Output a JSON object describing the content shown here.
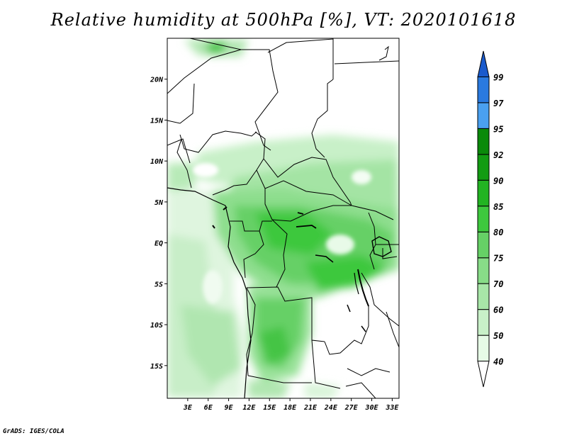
{
  "title": "Relative humidity at 500hPa [%], VT: 2020101618",
  "credit": "GrADS: IGES/COLA",
  "map": {
    "lon_range": [
      0,
      34
    ],
    "lat_range": [
      -19,
      25
    ],
    "lat_ticks": [
      "20N",
      "15N",
      "10N",
      "5N",
      "EQ",
      "5S",
      "10S",
      "15S"
    ],
    "lat_values": [
      20,
      15,
      10,
      5,
      0,
      -5,
      -10,
      -15
    ],
    "lon_ticks": [
      "3E",
      "6E",
      "9E",
      "12E",
      "15E",
      "18E",
      "21E",
      "24E",
      "27E",
      "30E",
      "33E"
    ],
    "lon_values": [
      3,
      6,
      9,
      12,
      15,
      18,
      21,
      24,
      27,
      30,
      33
    ]
  },
  "colorbar": {
    "levels": [
      "40",
      "50",
      "60",
      "70",
      "75",
      "80",
      "85",
      "90",
      "92",
      "95",
      "97",
      "99"
    ],
    "colors": [
      "#ffffff",
      "#e6fae6",
      "#c8f0c8",
      "#a8e6a8",
      "#88dc88",
      "#66d066",
      "#3ec83e",
      "#22b422",
      "#129c12",
      "#0a8a0a",
      "#4aa0f0",
      "#2a7ae0",
      "#1a5acc"
    ]
  }
}
